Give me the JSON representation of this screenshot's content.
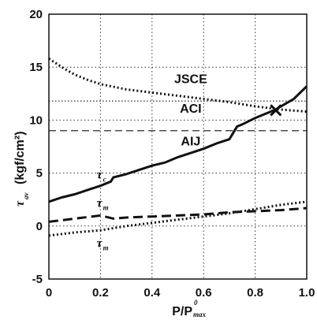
{
  "chart_data": {
    "type": "line",
    "xlabel": "P/P",
    "xlabel_sup": "0",
    "xlabel_sub": "max",
    "ylabel": "τ",
    "ylabel_sub": "av",
    "ylabel_unit": "(kgf/cm²)",
    "xlim": [
      0,
      1.0
    ],
    "ylim": [
      -5,
      20
    ],
    "x_ticks": [
      "0",
      "0.2",
      "0.4",
      "0.6",
      "0.8",
      "1.0"
    ],
    "y_ticks": [
      "-5",
      "0",
      "5",
      "10",
      "15",
      "20"
    ],
    "grid": true,
    "marker_point": {
      "x": 0.88,
      "y": 11.0,
      "symbol": "×"
    },
    "annotations": [
      {
        "text": "JSCE",
        "x": 0.55,
        "y": 13.5
      },
      {
        "text": "ACI",
        "x": 0.55,
        "y": 10.7
      },
      {
        "text": "AIJ",
        "x": 0.55,
        "y": 7.6
      },
      {
        "text": "τ",
        "sub": "c",
        "x": 0.225,
        "y": 4.5
      },
      {
        "text": "τ",
        "sub": "m",
        "x": 0.225,
        "y": 1.8
      },
      {
        "text": "τ",
        "sub": "m",
        "x": 0.225,
        "y": -2.0
      }
    ],
    "series": [
      {
        "style": "dotted",
        "width": 3,
        "x": [
          0,
          0.05,
          0.1,
          0.15,
          0.2,
          0.3,
          0.4,
          0.5,
          0.6,
          0.7,
          0.8,
          0.9,
          1.0
        ],
        "y": [
          15.8,
          15.0,
          14.3,
          13.8,
          13.4,
          12.9,
          12.6,
          12.3,
          12.0,
          11.7,
          11.3,
          11.0,
          10.8
        ]
      },
      {
        "style": "dotted",
        "width": 1.2,
        "x": [
          0,
          0.2,
          0.4,
          0.6,
          0.8,
          1.0
        ],
        "y": [
          11.8,
          11.8,
          11.8,
          11.8,
          11.8,
          11.8
        ]
      },
      {
        "style": "dashed",
        "width": 1.2,
        "x": [
          0,
          1.0
        ],
        "y": [
          9.0,
          9.0
        ]
      },
      {
        "style": "solid",
        "width": 3,
        "x": [
          0,
          0.05,
          0.1,
          0.15,
          0.2,
          0.24,
          0.25,
          0.3,
          0.35,
          0.4,
          0.45,
          0.5,
          0.55,
          0.6,
          0.65,
          0.7,
          0.72,
          0.73,
          0.75,
          0.8,
          0.85,
          0.88,
          0.9,
          0.95,
          1.0
        ],
        "y": [
          2.3,
          2.7,
          3.0,
          3.4,
          3.8,
          4.2,
          4.6,
          4.9,
          5.3,
          5.7,
          6.0,
          6.5,
          6.9,
          7.3,
          7.8,
          8.2,
          9.0,
          9.4,
          9.6,
          10.2,
          10.7,
          11.0,
          11.3,
          12.0,
          13.2
        ]
      },
      {
        "style": "dashed",
        "width": 3,
        "x": [
          0,
          0.1,
          0.2,
          0.25,
          0.3,
          0.4,
          0.5,
          0.6,
          0.7,
          0.8,
          0.9,
          1.0
        ],
        "y": [
          0.4,
          0.7,
          1.0,
          0.7,
          0.8,
          0.9,
          1.0,
          1.1,
          1.3,
          1.4,
          1.5,
          1.7
        ]
      },
      {
        "style": "dotted",
        "width": 3,
        "x": [
          0,
          0.1,
          0.2,
          0.3,
          0.4,
          0.5,
          0.6,
          0.7,
          0.8,
          0.9,
          1.0
        ],
        "y": [
          -0.9,
          -0.6,
          -0.4,
          0.0,
          0.3,
          0.6,
          0.9,
          1.2,
          1.6,
          2.0,
          2.3
        ]
      }
    ]
  }
}
